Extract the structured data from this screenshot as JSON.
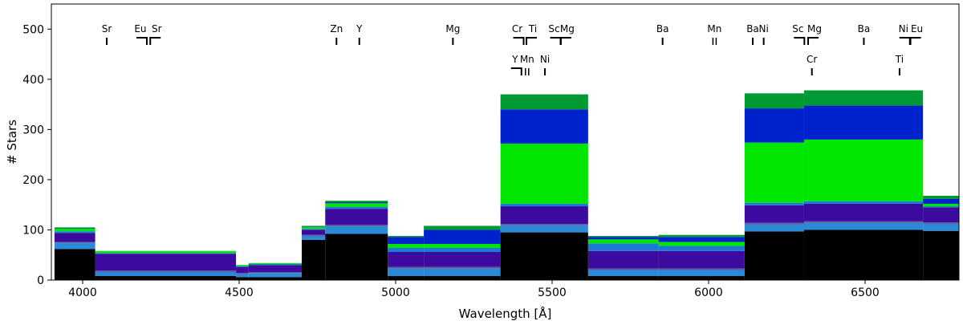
{
  "chart_data": {
    "type": "area",
    "title": "",
    "xlabel": "Wavelength [Å]",
    "ylabel": "# Stars",
    "xlim": [
      3900,
      6800
    ],
    "ylim": [
      0,
      550
    ],
    "xticks": [
      "4000",
      "4500",
      "5000",
      "5500",
      "6000",
      "6500"
    ],
    "yticks": [
      "0",
      "100",
      "200",
      "300",
      "400",
      "500"
    ],
    "segments": [
      {
        "x0": 3910,
        "x1": 4040,
        "total": 105,
        "layers": [
          62,
          12,
          2,
          18,
          3,
          6,
          1,
          1
        ]
      },
      {
        "x0": 4040,
        "x1": 4490,
        "total": 58,
        "layers": [
          8,
          8,
          3,
          33,
          2,
          4,
          0,
          0
        ]
      },
      {
        "x0": 4490,
        "x1": 4530,
        "total": 30,
        "layers": [
          6,
          6,
          2,
          12,
          2,
          2,
          0,
          0
        ]
      },
      {
        "x0": 4530,
        "x1": 4700,
        "total": 34,
        "layers": [
          6,
          8,
          2,
          14,
          2,
          2,
          0,
          0
        ]
      },
      {
        "x0": 4700,
        "x1": 4775,
        "total": 108,
        "layers": [
          80,
          8,
          2,
          10,
          2,
          4,
          1,
          1
        ]
      },
      {
        "x0": 4775,
        "x1": 4975,
        "total": 158,
        "layers": [
          92,
          15,
          3,
          32,
          4,
          7,
          2,
          3
        ]
      },
      {
        "x0": 4975,
        "x1": 5090,
        "total": 88,
        "layers": [
          8,
          15,
          3,
          30,
          8,
          8,
          14,
          2
        ]
      },
      {
        "x0": 5090,
        "x1": 5335,
        "total": 108,
        "layers": [
          8,
          15,
          3,
          30,
          8,
          8,
          28,
          8
        ]
      },
      {
        "x0": 5335,
        "x1": 5615,
        "total": 370,
        "layers": [
          95,
          14,
          3,
          35,
          5,
          120,
          68,
          30
        ]
      },
      {
        "x0": 5615,
        "x1": 5840,
        "total": 88,
        "layers": [
          8,
          12,
          3,
          35,
          15,
          8,
          5,
          2
        ]
      },
      {
        "x0": 5840,
        "x1": 6115,
        "total": 90,
        "layers": [
          8,
          12,
          3,
          35,
          10,
          8,
          10,
          4
        ]
      },
      {
        "x0": 6115,
        "x1": 6305,
        "total": 372,
        "layers": [
          97,
          14,
          3,
          35,
          5,
          120,
          68,
          30
        ]
      },
      {
        "x0": 6305,
        "x1": 6685,
        "total": 378,
        "layers": [
          100,
          14,
          3,
          35,
          5,
          123,
          68,
          30
        ]
      },
      {
        "x0": 6685,
        "x1": 6800,
        "total": 168,
        "layers": [
          98,
          14,
          3,
          30,
          2,
          5,
          10,
          6
        ]
      }
    ],
    "layer_colors": [
      "#000000",
      "#2a8ad8",
      "#5c5c9c",
      "#3c0a9e",
      "#1a7ad6",
      "#00e600",
      "#0022cc",
      "#009933"
    ],
    "line_labels": [
      {
        "label": "Sr",
        "x": 4077,
        "row": "top",
        "kind": "single"
      },
      {
        "label": "Eu",
        "x": 4205,
        "row": "top",
        "kind": "bracket-right"
      },
      {
        "label": "Sr",
        "x": 4216,
        "row": "top",
        "kind": "bracket-left"
      },
      {
        "label": "Zn",
        "x": 4811,
        "row": "top",
        "kind": "single"
      },
      {
        "label": "Y",
        "x": 4884,
        "row": "top",
        "kind": "single"
      },
      {
        "label": "Mg",
        "x": 5183,
        "row": "top",
        "kind": "single"
      },
      {
        "label": "Cr",
        "x": 5409,
        "row": "top",
        "kind": "bracket-right"
      },
      {
        "label": "Ti",
        "x": 5418,
        "row": "top",
        "kind": "bracket-left"
      },
      {
        "label": "Sc",
        "x": 5527,
        "row": "top",
        "kind": "bracket-right"
      },
      {
        "label": "Mg",
        "x": 5528,
        "row": "top",
        "kind": "bracket-left"
      },
      {
        "label": "Y",
        "x": 5402,
        "row": "bottom",
        "kind": "bracket-right"
      },
      {
        "label": "Mn",
        "x": 5420,
        "row": "bottom",
        "kind": "double"
      },
      {
        "label": "Ni",
        "x": 5477,
        "row": "bottom",
        "kind": "single"
      },
      {
        "label": "Ba",
        "x": 5853,
        "row": "top",
        "kind": "single"
      },
      {
        "label": "Mn",
        "x": 6019,
        "row": "top",
        "kind": "double"
      },
      {
        "label": "Ba",
        "x": 6141,
        "row": "top",
        "kind": "single"
      },
      {
        "label": "Ni",
        "x": 6176,
        "row": "top",
        "kind": "single"
      },
      {
        "label": "Sc",
        "x": 6306,
        "row": "top",
        "kind": "bracket-right"
      },
      {
        "label": "Mg",
        "x": 6318,
        "row": "top",
        "kind": "bracket-left"
      },
      {
        "label": "Cr",
        "x": 6330,
        "row": "bottom",
        "kind": "single"
      },
      {
        "label": "Ba",
        "x": 6496,
        "row": "top",
        "kind": "single"
      },
      {
        "label": "Ni",
        "x": 6643,
        "row": "top",
        "kind": "bracket-right"
      },
      {
        "label": "Eu",
        "x": 6645,
        "row": "top",
        "kind": "bracket-left"
      },
      {
        "label": "Ti",
        "x": 6610,
        "row": "bottom",
        "kind": "single"
      }
    ]
  }
}
